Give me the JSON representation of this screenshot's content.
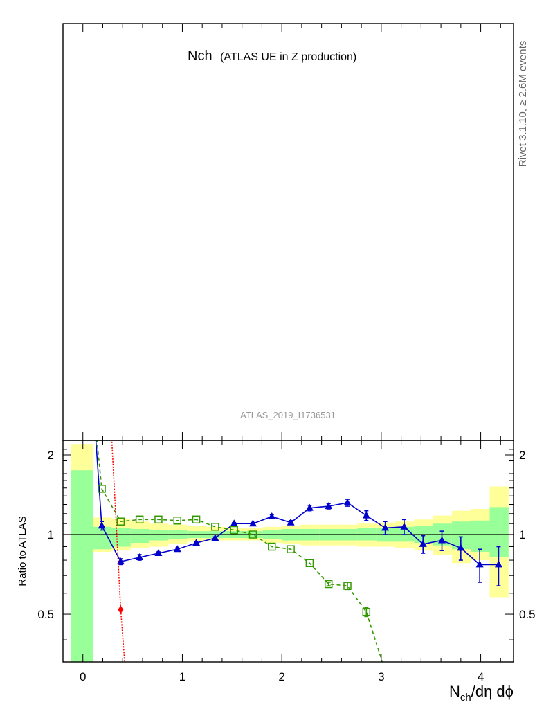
{
  "chart_data": {
    "type": "line",
    "title": "Nch",
    "subtitle": "(ATLAS UE in Z production)",
    "analysis": "ATLAS_2019_I1736531",
    "side_label": "Rivet 3.1.10, ≥ 2.6M events",
    "xlabel": "N_ch/dη dϕ",
    "xlabel_main": "N",
    "xlabel_sub": "ch",
    "xlabel_rest": "/dη dϕ",
    "ratio_ylabel": "Ratio to ATLAS",
    "xlim": [
      -0.2,
      4.33
    ],
    "ratio_ylim": [
      0.33,
      2.27
    ],
    "ratio_log_y": true,
    "x_ticks": [
      "0",
      "1",
      "2",
      "3",
      "4"
    ],
    "x_tick_values": [
      0,
      1,
      2,
      3,
      4
    ],
    "y_ticks": [
      "0.5",
      "1",
      "2"
    ],
    "y_tick_values": [
      0.5,
      1,
      2
    ],
    "colors": {
      "band_inner": "#99ff99",
      "band_outer": "#ffff99",
      "blue": "#0000cc",
      "green": "#339900",
      "red": "#ff0000"
    },
    "bands": [
      {
        "x0": -0.12,
        "x1": 0.1,
        "inner": [
          0.33,
          1.75
        ],
        "outer": [
          0.33,
          2.2
        ]
      },
      {
        "x0": 0.1,
        "x1": 0.29,
        "inner": [
          0.88,
          1.07
        ],
        "outer": [
          0.86,
          1.16
        ]
      },
      {
        "x0": 0.29,
        "x1": 0.48,
        "inner": [
          0.9,
          1.06
        ],
        "outer": [
          0.87,
          1.15
        ]
      },
      {
        "x0": 0.48,
        "x1": 0.67,
        "inner": [
          0.93,
          1.05
        ],
        "outer": [
          0.89,
          1.12
        ]
      },
      {
        "x0": 0.67,
        "x1": 0.86,
        "inner": [
          0.95,
          1.04
        ],
        "outer": [
          0.9,
          1.1
        ]
      },
      {
        "x0": 0.86,
        "x1": 1.05,
        "inner": [
          0.96,
          1.04
        ],
        "outer": [
          0.92,
          1.09
        ]
      },
      {
        "x0": 1.05,
        "x1": 1.24,
        "inner": [
          0.97,
          1.03
        ],
        "outer": [
          0.94,
          1.08
        ]
      },
      {
        "x0": 1.24,
        "x1": 1.43,
        "inner": [
          0.97,
          1.03
        ],
        "outer": [
          0.95,
          1.07
        ]
      },
      {
        "x0": 1.43,
        "x1": 1.62,
        "inner": [
          0.97,
          1.03
        ],
        "outer": [
          0.95,
          1.06
        ]
      },
      {
        "x0": 1.62,
        "x1": 1.81,
        "inner": [
          0.97,
          1.03
        ],
        "outer": [
          0.95,
          1.06
        ]
      },
      {
        "x0": 1.81,
        "x1": 2.0,
        "inner": [
          0.96,
          1.04
        ],
        "outer": [
          0.93,
          1.07
        ]
      },
      {
        "x0": 2.0,
        "x1": 2.19,
        "inner": [
          0.95,
          1.05
        ],
        "outer": [
          0.92,
          1.08
        ]
      },
      {
        "x0": 2.19,
        "x1": 2.38,
        "inner": [
          0.95,
          1.05
        ],
        "outer": [
          0.91,
          1.09
        ]
      },
      {
        "x0": 2.38,
        "x1": 2.57,
        "inner": [
          0.95,
          1.05
        ],
        "outer": [
          0.91,
          1.09
        ]
      },
      {
        "x0": 2.57,
        "x1": 2.76,
        "inner": [
          0.95,
          1.05
        ],
        "outer": [
          0.91,
          1.09
        ]
      },
      {
        "x0": 2.76,
        "x1": 2.95,
        "inner": [
          0.95,
          1.06
        ],
        "outer": [
          0.9,
          1.1
        ]
      },
      {
        "x0": 2.95,
        "x1": 3.14,
        "inner": [
          0.94,
          1.06
        ],
        "outer": [
          0.9,
          1.11
        ]
      },
      {
        "x0": 3.14,
        "x1": 3.33,
        "inner": [
          0.94,
          1.07
        ],
        "outer": [
          0.89,
          1.12
        ]
      },
      {
        "x0": 3.33,
        "x1": 3.52,
        "inner": [
          0.93,
          1.08
        ],
        "outer": [
          0.87,
          1.14
        ]
      },
      {
        "x0": 3.52,
        "x1": 3.71,
        "inner": [
          0.91,
          1.1
        ],
        "outer": [
          0.84,
          1.18
        ]
      },
      {
        "x0": 3.71,
        "x1": 3.9,
        "inner": [
          0.88,
          1.12
        ],
        "outer": [
          0.78,
          1.23
        ]
      },
      {
        "x0": 3.9,
        "x1": 4.09,
        "inner": [
          0.86,
          1.13
        ],
        "outer": [
          0.8,
          1.25
        ]
      },
      {
        "x0": 4.09,
        "x1": 4.28,
        "inner": [
          0.82,
          1.27
        ],
        "outer": [
          0.58,
          1.52
        ]
      }
    ],
    "series": [
      {
        "color": "#0000cc",
        "marker": "triangle",
        "dash": "",
        "points": [
          {
            "x": 0.13,
            "y": 2.3,
            "err": 0,
            "marker": false
          },
          {
            "x": 0.19,
            "y": 1.08,
            "err": 0.04,
            "marker": true
          },
          {
            "x": 0.38,
            "y": 0.79,
            "err": 0.02,
            "marker": true
          },
          {
            "x": 0.57,
            "y": 0.82,
            "err": 0.02,
            "marker": true
          },
          {
            "x": 0.76,
            "y": 0.85,
            "err": 0.01,
            "marker": true
          },
          {
            "x": 0.95,
            "y": 0.88,
            "err": 0.01,
            "marker": true
          },
          {
            "x": 1.14,
            "y": 0.93,
            "err": 0.01,
            "marker": true
          },
          {
            "x": 1.33,
            "y": 0.97,
            "err": 0.01,
            "marker": true
          },
          {
            "x": 1.52,
            "y": 1.1,
            "err": 0.01,
            "marker": true
          },
          {
            "x": 1.71,
            "y": 1.1,
            "err": 0.01,
            "marker": true
          },
          {
            "x": 1.9,
            "y": 1.17,
            "err": 0.02,
            "marker": true
          },
          {
            "x": 2.09,
            "y": 1.11,
            "err": 0.02,
            "marker": true
          },
          {
            "x": 2.28,
            "y": 1.26,
            "err": 0.03,
            "marker": true
          },
          {
            "x": 2.47,
            "y": 1.28,
            "err": 0.03,
            "marker": true
          },
          {
            "x": 2.66,
            "y": 1.32,
            "err": 0.04,
            "marker": true
          },
          {
            "x": 2.85,
            "y": 1.18,
            "err": 0.05,
            "marker": true
          },
          {
            "x": 3.04,
            "y": 1.06,
            "err": 0.06,
            "marker": true
          },
          {
            "x": 3.23,
            "y": 1.07,
            "err": 0.07,
            "marker": true
          },
          {
            "x": 3.42,
            "y": 0.92,
            "err": 0.07,
            "marker": true
          },
          {
            "x": 3.61,
            "y": 0.95,
            "err": 0.08,
            "marker": true
          },
          {
            "x": 3.8,
            "y": 0.89,
            "err": 0.09,
            "marker": true
          },
          {
            "x": 3.99,
            "y": 0.77,
            "err": 0.11,
            "marker": true
          },
          {
            "x": 4.18,
            "y": 0.77,
            "err": 0.13,
            "marker": true
          }
        ]
      },
      {
        "color": "#339900",
        "marker": "open-square",
        "dash": "5,4",
        "points": [
          {
            "x": 0.14,
            "y": 2.3,
            "err": 0,
            "marker": false
          },
          {
            "x": 0.19,
            "y": 1.49,
            "err": 0,
            "marker": true
          },
          {
            "x": 0.38,
            "y": 1.12,
            "err": 0,
            "marker": true
          },
          {
            "x": 0.57,
            "y": 1.14,
            "err": 0,
            "marker": true
          },
          {
            "x": 0.76,
            "y": 1.14,
            "err": 0,
            "marker": true
          },
          {
            "x": 0.95,
            "y": 1.13,
            "err": 0,
            "marker": true
          },
          {
            "x": 1.14,
            "y": 1.14,
            "err": 0,
            "marker": true
          },
          {
            "x": 1.33,
            "y": 1.07,
            "err": 0,
            "marker": true
          },
          {
            "x": 1.52,
            "y": 1.04,
            "err": 0,
            "marker": true
          },
          {
            "x": 1.71,
            "y": 1.0,
            "err": 0,
            "marker": true
          },
          {
            "x": 1.9,
            "y": 0.9,
            "err": 0,
            "marker": true
          },
          {
            "x": 2.09,
            "y": 0.88,
            "err": 0,
            "marker": true
          },
          {
            "x": 2.28,
            "y": 0.78,
            "err": 0,
            "marker": true
          },
          {
            "x": 2.47,
            "y": 0.65,
            "err": 0.01,
            "marker": true
          },
          {
            "x": 2.66,
            "y": 0.64,
            "err": 0.02,
            "marker": true
          },
          {
            "x": 2.85,
            "y": 0.51,
            "err": 0.02,
            "marker": true
          },
          {
            "x": 3.01,
            "y": 0.33,
            "err": 0,
            "marker": false
          }
        ]
      },
      {
        "color": "#ff0000",
        "marker": "diamond",
        "dash": "2,2",
        "points": [
          {
            "x": 0.29,
            "y": 2.3,
            "err": 0,
            "marker": false
          },
          {
            "x": 0.38,
            "y": 0.52,
            "err": 0,
            "marker": true
          },
          {
            "x": 0.42,
            "y": 0.33,
            "err": 0,
            "marker": false
          }
        ]
      }
    ]
  }
}
